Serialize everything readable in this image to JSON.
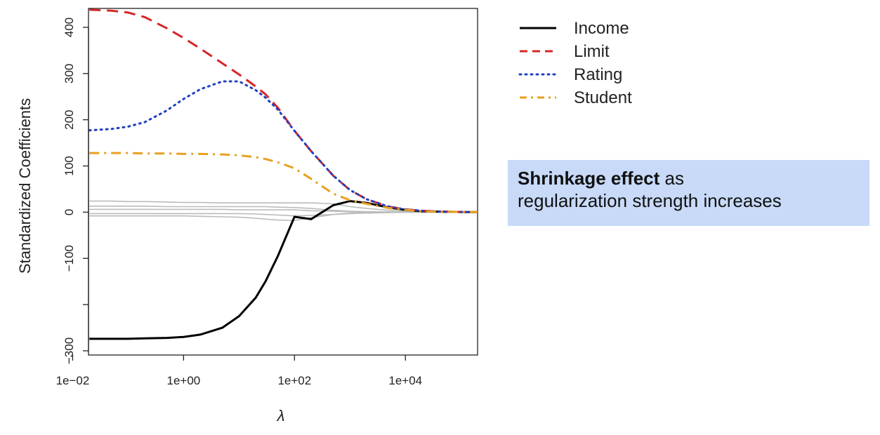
{
  "callout": {
    "bold_text": "Shrinkage effect",
    "rest_line1": " as",
    "line2": "regularization strength increases",
    "background": "#c8daf8"
  },
  "chart_data": {
    "type": "line",
    "xlabel": "λ",
    "ylabel": "Standardized Coefficients",
    "x_scale": "log10",
    "xlim": [
      0.0193,
      200000
    ],
    "ylim": [
      -300,
      450
    ],
    "x_ticks": [
      {
        "value": 0.01,
        "label": "1e−02"
      },
      {
        "value": 1,
        "label": "1e+00"
      },
      {
        "value": 100,
        "label": "1e+02"
      },
      {
        "value": 10000,
        "label": "1e+04"
      }
    ],
    "y_ticks": [
      {
        "value": 400,
        "label": "400"
      },
      {
        "value": 300,
        "label": "300"
      },
      {
        "value": 200,
        "label": "200"
      },
      {
        "value": 100,
        "label": "100"
      },
      {
        "value": 0,
        "label": "0"
      },
      {
        "value": -100,
        "label": "−100"
      },
      {
        "value": -200,
        "label": ""
      },
      {
        "value": -300,
        "label": "−300"
      }
    ],
    "legend_position": "outside-right-top",
    "grid": false,
    "x": [
      0.02,
      0.05,
      0.1,
      0.2,
      0.5,
      1,
      2,
      5,
      10,
      20,
      30,
      50,
      100,
      200,
      500,
      1000,
      2000,
      5000,
      10000,
      20000,
      50000,
      100000,
      200000
    ],
    "series": [
      {
        "name": "Income",
        "color": "#000000",
        "style": "solid",
        "values": [
          -274,
          -274,
          -274,
          -273,
          -272,
          -270,
          -265,
          -250,
          -225,
          -185,
          -150,
          -95,
          -10,
          -15,
          15,
          24,
          20,
          10,
          5,
          2,
          1,
          0.5,
          0
        ]
      },
      {
        "name": "Limit",
        "color": "#d62728",
        "style": "dashed",
        "values": [
          438,
          436,
          432,
          422,
          398,
          377,
          354,
          322,
          298,
          272,
          255,
          226,
          176,
          132,
          79,
          48,
          28,
          12,
          6,
          3,
          1,
          0.5,
          0
        ]
      },
      {
        "name": "Rating",
        "color": "#2040c0",
        "style": "dotted",
        "values": [
          177,
          180,
          185,
          195,
          220,
          245,
          266,
          283,
          283,
          264,
          248,
          222,
          176,
          132,
          79,
          48,
          28,
          12,
          6,
          3,
          1,
          0.5,
          0
        ]
      },
      {
        "name": "Student",
        "color": "#e8a020",
        "style": "dashdot",
        "values": [
          128,
          128,
          128,
          127,
          127,
          126,
          126,
          125,
          123,
          119,
          115,
          108,
          95,
          72,
          40,
          26,
          18,
          9,
          5,
          2,
          1,
          0.5,
          0
        ]
      }
    ],
    "other_variables": {
      "color": "#bbbbbb",
      "values": [
        [
          24,
          24,
          23,
          23,
          22,
          21,
          21,
          20,
          20,
          20,
          20,
          20,
          20,
          20,
          18,
          12,
          8,
          4,
          2,
          1,
          0.5,
          0,
          0
        ],
        [
          13,
          13,
          13,
          13,
          12,
          12,
          12,
          12,
          12,
          12,
          12,
          11,
          10,
          8,
          4,
          2,
          1,
          0.5,
          0,
          0,
          0,
          0,
          0
        ],
        [
          6,
          6,
          6,
          6,
          6,
          6,
          6,
          6,
          5,
          5,
          5,
          5,
          5,
          3,
          2,
          1,
          0.5,
          0,
          0,
          0,
          0,
          0,
          0
        ],
        [
          -3,
          -3,
          -3,
          -3,
          -3,
          -3,
          -3,
          -3,
          -3,
          -4,
          -5,
          -6,
          -8,
          -7,
          -5,
          -3,
          -2,
          -1,
          0,
          0,
          0,
          0,
          0
        ],
        [
          -8,
          -8,
          -8,
          -8,
          -8,
          -8,
          -9,
          -10,
          -11,
          -13,
          -15,
          -17,
          -18,
          -12,
          -5,
          -2,
          -1,
          0,
          0,
          0,
          0,
          0,
          0
        ]
      ]
    }
  }
}
